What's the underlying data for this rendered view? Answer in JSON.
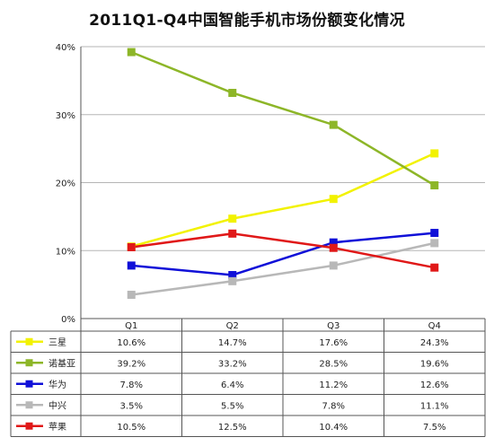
{
  "chart_data": {
    "type": "line",
    "title": "2011Q1-Q4中国智能手机市场份额变化情况",
    "categories": [
      "Q1",
      "Q2",
      "Q3",
      "Q4"
    ],
    "ylim": [
      0,
      40
    ],
    "yticks": [
      "0%",
      "10%",
      "20%",
      "30%",
      "40%"
    ],
    "grid": true,
    "legend": "table-below",
    "series": [
      {
        "name": "三星",
        "color": "#f2f200",
        "values": [
          10.6,
          14.7,
          17.6,
          24.3
        ],
        "labels": [
          "10.6%",
          "14.7%",
          "17.6%",
          "24.3%"
        ]
      },
      {
        "name": "诺基亚",
        "color": "#8db628",
        "values": [
          39.2,
          33.2,
          28.5,
          19.6
        ],
        "labels": [
          "39.2%",
          "33.2%",
          "28.5%",
          "19.6%"
        ]
      },
      {
        "name": "华为",
        "color": "#1010d8",
        "values": [
          7.8,
          6.4,
          11.2,
          12.6
        ],
        "labels": [
          "7.8%",
          "6.4%",
          "11.2%",
          "12.6%"
        ]
      },
      {
        "name": "中兴",
        "color": "#b8b8b8",
        "values": [
          3.5,
          5.5,
          7.8,
          11.1
        ],
        "labels": [
          "3.5%",
          "5.5%",
          "7.8%",
          "11.1%"
        ]
      },
      {
        "name": "苹果",
        "color": "#e01818",
        "values": [
          10.5,
          12.5,
          10.4,
          7.5
        ],
        "labels": [
          "10.5%",
          "12.5%",
          "10.4%",
          "7.5%"
        ]
      }
    ]
  }
}
